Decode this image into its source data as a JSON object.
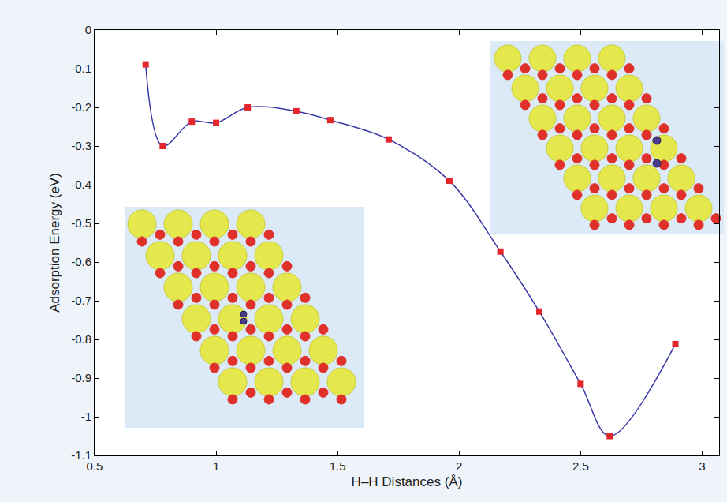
{
  "chart_data": {
    "type": "line",
    "x_label": "H–H Distances (Å)",
    "y_label": "Adsorption Energy (eV)",
    "x": [
      0.71,
      0.78,
      0.9,
      1.0,
      1.13,
      1.33,
      1.47,
      1.71,
      1.96,
      2.17,
      2.33,
      2.5,
      2.62,
      2.89
    ],
    "values": [
      -0.089,
      -0.3,
      -0.237,
      -0.24,
      -0.2,
      -0.21,
      -0.233,
      -0.283,
      -0.39,
      -0.573,
      -0.728,
      -0.915,
      -1.05,
      -0.812
    ],
    "color": "#3a3aa8",
    "marker": "square",
    "line_style": "smooth",
    "xlim": [
      0.5,
      3.07
    ],
    "ylim": [
      -1.1,
      0
    ],
    "xticks": [
      0.5,
      1,
      1.5,
      2,
      2.5,
      3
    ],
    "yticks": [
      0,
      -0.1,
      -0.2,
      -0.3,
      -0.4,
      -0.5,
      -0.6,
      -0.7,
      -0.8,
      -0.9,
      -1,
      -1.1
    ],
    "grid": false
  }
}
